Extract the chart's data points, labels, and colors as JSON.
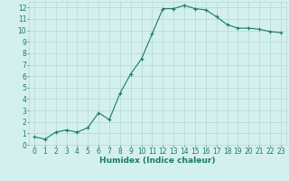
{
  "x": [
    0,
    1,
    2,
    3,
    4,
    5,
    6,
    7,
    8,
    9,
    10,
    11,
    12,
    13,
    14,
    15,
    16,
    17,
    18,
    19,
    20,
    21,
    22,
    23
  ],
  "y": [
    0.7,
    0.5,
    1.1,
    1.3,
    1.1,
    1.5,
    2.8,
    2.2,
    4.5,
    6.2,
    7.5,
    9.7,
    11.9,
    11.9,
    12.2,
    11.9,
    11.8,
    11.2,
    10.5,
    10.2,
    10.2,
    10.1,
    9.9,
    9.8
  ],
  "line_color": "#1a7a6a",
  "marker": "+",
  "marker_size": 3.5,
  "bg_color": "#d4f0ee",
  "grid_color": "#b0d8d4",
  "xlabel": "Humidex (Indice chaleur)",
  "xlabel_fontsize": 6.5,
  "tick_fontsize": 5.5,
  "ylim": [
    0,
    12.5
  ],
  "xlim": [
    -0.5,
    23.5
  ],
  "yticks": [
    0,
    1,
    2,
    3,
    4,
    5,
    6,
    7,
    8,
    9,
    10,
    11,
    12
  ],
  "xticks": [
    0,
    1,
    2,
    3,
    4,
    5,
    6,
    7,
    8,
    9,
    10,
    11,
    12,
    13,
    14,
    15,
    16,
    17,
    18,
    19,
    20,
    21,
    22,
    23
  ]
}
